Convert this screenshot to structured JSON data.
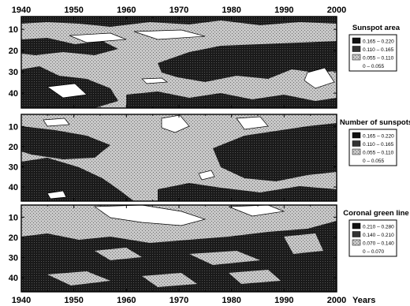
{
  "chart_data": [
    {
      "type": "heatmap",
      "title": "Sunspot area",
      "x_ticks": [
        1940,
        1950,
        1960,
        1970,
        1980,
        1990,
        2000
      ],
      "y_ticks": [
        10,
        20,
        30,
        40
      ],
      "xlim": [
        1940,
        2000
      ],
      "ylim": [
        4,
        47
      ],
      "legend": [
        {
          "label": "0.165 – 0.220",
          "level": 3,
          "color": "#111111"
        },
        {
          "label": "0.110 – 0.165",
          "level": 2,
          "color": "#333333"
        },
        {
          "label": "0.055 – 0.110",
          "level": 1,
          "color": "#bdbdbd"
        },
        {
          "label": "0 – 0.055",
          "level": 0,
          "color": "#ffffff"
        }
      ]
    },
    {
      "type": "heatmap",
      "title": "Number of sunspots",
      "x_ticks": [
        1940,
        1950,
        1960,
        1970,
        1980,
        1990,
        2000
      ],
      "y_ticks": [
        10,
        20,
        30,
        40
      ],
      "xlim": [
        1940,
        2000
      ],
      "ylim": [
        4,
        47
      ],
      "legend": [
        {
          "label": "0.165 – 0.220",
          "level": 3,
          "color": "#111111"
        },
        {
          "label": "0.110 – 0.165",
          "level": 2,
          "color": "#333333"
        },
        {
          "label": "0.055 – 0.110",
          "level": 1,
          "color": "#bdbdbd"
        },
        {
          "label": "0 – 0.055",
          "level": 0,
          "color": "#ffffff"
        }
      ]
    },
    {
      "type": "heatmap",
      "title": "Coronal green line",
      "x_ticks": [
        1940,
        1950,
        1960,
        1970,
        1980,
        1990,
        2000
      ],
      "y_ticks": [
        10,
        20,
        30,
        40
      ],
      "xlim": [
        1940,
        2000
      ],
      "ylim": [
        4,
        47
      ],
      "xlabel": "Years",
      "legend": [
        {
          "label": "0.210 – 0.280",
          "level": 3,
          "color": "#111111"
        },
        {
          "label": "0.140 – 0.210",
          "level": 2,
          "color": "#333333"
        },
        {
          "label": "0.070 – 0.140",
          "level": 1,
          "color": "#bdbdbd"
        },
        {
          "label": "0 – 0.070",
          "level": 0,
          "color": "#ffffff"
        }
      ]
    }
  ]
}
